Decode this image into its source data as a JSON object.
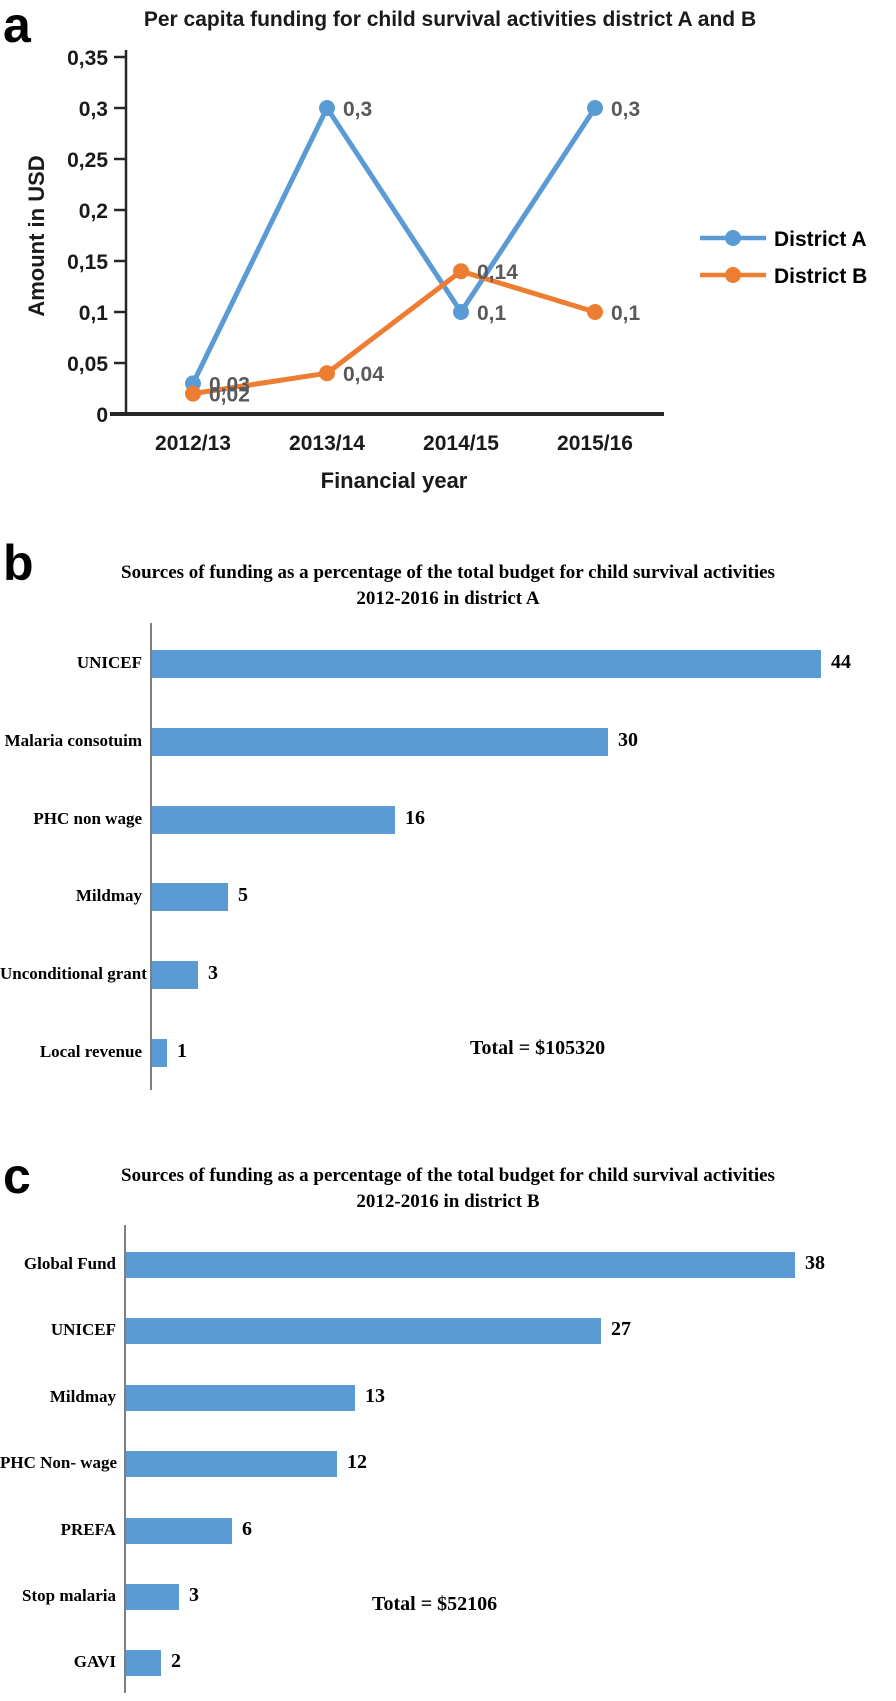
{
  "panels": [
    {
      "label": "a"
    },
    {
      "label": "b"
    },
    {
      "label": "c"
    }
  ],
  "chart_data": [
    {
      "type": "line",
      "title": "Per capita funding for child survival activities district A and B",
      "xlabel": "Financial year",
      "ylabel": "Amount in USD",
      "x": [
        "2012/13",
        "2013/14",
        "2014/15",
        "2015/16"
      ],
      "series": [
        {
          "name": "District A",
          "color": "#5B9BD5",
          "values": [
            0.03,
            0.3,
            0.1,
            0.3
          ],
          "point_labels": [
            "0,03",
            "0,3",
            "0,1",
            "0,3"
          ]
        },
        {
          "name": "District B",
          "color": "#ED7D31",
          "values": [
            0.02,
            0.04,
            0.14,
            0.1
          ],
          "point_labels": [
            "0,02",
            "0,04",
            "0,14",
            "0,1"
          ]
        }
      ],
      "ylim": [
        0,
        0.35
      ],
      "ytick_step": 0.05,
      "ytick_labels": [
        "0",
        "0,05",
        "0,1",
        "0,15",
        "0,2",
        "0,25",
        "0,3",
        "0,35"
      ],
      "legend_position": "right",
      "grid": false,
      "data_label_color": "#595959"
    },
    {
      "type": "bar",
      "orientation": "horizontal",
      "title_line1": "Sources of funding as a percentage of the total budget for child survival activities",
      "title_line2": "2012-2016 in district A",
      "categories": [
        "UNICEF",
        "Malaria consotuim",
        "PHC non wage",
        "Mildmay",
        "Unconditional grant",
        "Local revenue"
      ],
      "values": [
        44,
        30,
        16,
        5,
        3,
        1
      ],
      "bar_color": "#5B9BD5",
      "xlim": [
        0,
        46
      ],
      "grid": false,
      "total_label": "Total = $105320"
    },
    {
      "type": "bar",
      "orientation": "horizontal",
      "title_line1": "Sources of funding as a percentage of the total budget for child survival activities",
      "title_line2": "2012-2016 in district B",
      "categories": [
        "Global Fund",
        "UNICEF",
        "Mildmay",
        "PHC Non- wage",
        "PREFA",
        "Stop malaria",
        "GAVI"
      ],
      "values": [
        38,
        27,
        13,
        12,
        6,
        3,
        2
      ],
      "bar_color": "#5B9BD5",
      "xlim": [
        0,
        40
      ],
      "grid": false,
      "total_label": "Total = $52106"
    }
  ]
}
